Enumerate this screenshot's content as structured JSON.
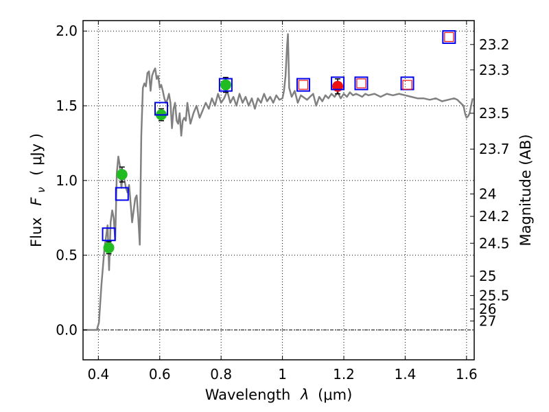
{
  "chart_data": {
    "type": "scatter",
    "title": "",
    "xlabel": "Wavelength",
    "xlabel_symbol": "λ",
    "xlabel_units": "(μm)",
    "ylabel_prefix": "Flux",
    "ylabel_symbol": "F",
    "ylabel_subscript": "ν",
    "ylabel_units": "( μJy )",
    "y2label": "Magnitude (AB)",
    "xlim": [
      0.35,
      1.625
    ],
    "ylim": [
      -0.2,
      2.07
    ],
    "grid": true,
    "xticks": [
      {
        "value": 0.4,
        "label": "0.4"
      },
      {
        "value": 0.6,
        "label": "0.6"
      },
      {
        "value": 0.8,
        "label": "0.8"
      },
      {
        "value": 1.0,
        "label": "1"
      },
      {
        "value": 1.2,
        "label": "1.2"
      },
      {
        "value": 1.4,
        "label": "1.4"
      },
      {
        "value": 1.6,
        "label": "1.6"
      }
    ],
    "yticks": [
      {
        "value": 0.0,
        "label": "0.0"
      },
      {
        "value": 0.5,
        "label": "0.5"
      },
      {
        "value": 1.0,
        "label": "1.0"
      },
      {
        "value": 1.5,
        "label": "1.5"
      },
      {
        "value": 2.0,
        "label": "2.0"
      }
    ],
    "y2ticks": [
      {
        "label": "23.2",
        "flux": 1.91
      },
      {
        "label": "23.3",
        "flux": 1.74
      },
      {
        "label": "23.5",
        "flux": 1.45
      },
      {
        "label": "23.7",
        "flux": 1.21
      },
      {
        "label": "24",
        "flux": 0.91
      },
      {
        "label": "24.2",
        "flux": 0.76
      },
      {
        "label": "24.5",
        "flux": 0.58
      },
      {
        "label": "25",
        "flux": 0.36
      },
      {
        "label": "25.5",
        "flux": 0.23
      },
      {
        "label": "26",
        "flux": 0.14
      },
      {
        "label": "27",
        "flux": 0.06
      }
    ],
    "series": [
      {
        "name": "model spectrum",
        "kind": "line",
        "color": "#808080",
        "x": [
          0.35,
          0.395,
          0.402,
          0.41,
          0.42,
          0.43,
          0.435,
          0.44,
          0.445,
          0.45,
          0.455,
          0.46,
          0.465,
          0.47,
          0.475,
          0.48,
          0.485,
          0.49,
          0.495,
          0.5,
          0.505,
          0.51,
          0.515,
          0.52,
          0.525,
          0.53,
          0.535,
          0.54,
          0.545,
          0.55,
          0.555,
          0.56,
          0.565,
          0.57,
          0.575,
          0.58,
          0.585,
          0.59,
          0.595,
          0.6,
          0.605,
          0.61,
          0.615,
          0.62,
          0.625,
          0.63,
          0.635,
          0.64,
          0.645,
          0.65,
          0.655,
          0.66,
          0.665,
          0.67,
          0.675,
          0.68,
          0.685,
          0.69,
          0.7,
          0.71,
          0.72,
          0.73,
          0.74,
          0.75,
          0.76,
          0.77,
          0.78,
          0.79,
          0.8,
          0.81,
          0.82,
          0.83,
          0.84,
          0.85,
          0.86,
          0.87,
          0.88,
          0.89,
          0.9,
          0.91,
          0.92,
          0.93,
          0.94,
          0.95,
          0.96,
          0.97,
          0.98,
          0.99,
          1.0,
          1.005,
          1.01,
          1.015,
          1.018,
          1.022,
          1.03,
          1.04,
          1.05,
          1.06,
          1.08,
          1.1,
          1.11,
          1.12,
          1.13,
          1.14,
          1.15,
          1.16,
          1.17,
          1.18,
          1.19,
          1.2,
          1.21,
          1.22,
          1.23,
          1.24,
          1.25,
          1.26,
          1.27,
          1.28,
          1.3,
          1.32,
          1.34,
          1.36,
          1.38,
          1.4,
          1.42,
          1.44,
          1.46,
          1.48,
          1.5,
          1.52,
          1.54,
          1.56,
          1.57,
          1.58,
          1.59,
          1.595,
          1.6,
          1.605,
          1.61,
          1.615,
          1.62
        ],
        "y": [
          0.0,
          0.0,
          0.05,
          0.3,
          0.55,
          0.7,
          0.4,
          0.72,
          0.8,
          0.75,
          0.6,
          1.05,
          1.16,
          1.1,
          0.95,
          1.05,
          1.0,
          0.95,
          0.92,
          0.97,
          0.85,
          0.72,
          0.8,
          0.88,
          0.9,
          0.75,
          0.57,
          1.3,
          1.62,
          1.65,
          1.63,
          1.72,
          1.73,
          1.6,
          1.7,
          1.73,
          1.75,
          1.68,
          1.7,
          1.62,
          1.64,
          1.6,
          1.55,
          1.52,
          1.54,
          1.58,
          1.52,
          1.35,
          1.48,
          1.52,
          1.4,
          1.38,
          1.45,
          1.3,
          1.4,
          1.42,
          1.4,
          1.52,
          1.38,
          1.45,
          1.5,
          1.42,
          1.47,
          1.52,
          1.48,
          1.55,
          1.5,
          1.58,
          1.52,
          1.55,
          1.6,
          1.52,
          1.56,
          1.5,
          1.58,
          1.52,
          1.56,
          1.5,
          1.55,
          1.48,
          1.55,
          1.52,
          1.58,
          1.53,
          1.56,
          1.52,
          1.57,
          1.54,
          1.55,
          1.6,
          1.7,
          1.9,
          1.98,
          1.62,
          1.56,
          1.6,
          1.52,
          1.57,
          1.54,
          1.58,
          1.5,
          1.56,
          1.53,
          1.57,
          1.55,
          1.58,
          1.56,
          1.59,
          1.55,
          1.58,
          1.56,
          1.59,
          1.57,
          1.58,
          1.57,
          1.56,
          1.58,
          1.57,
          1.58,
          1.56,
          1.58,
          1.57,
          1.58,
          1.57,
          1.56,
          1.55,
          1.55,
          1.54,
          1.55,
          1.53,
          1.54,
          1.55,
          1.54,
          1.52,
          1.5,
          1.45,
          1.42,
          1.43,
          1.45,
          1.5,
          1.55
        ]
      },
      {
        "name": "green observed points",
        "kind": "points",
        "marker": "circle",
        "color": "#22bb22",
        "x": [
          0.434,
          0.477,
          0.605,
          0.815
        ],
        "y": [
          0.55,
          1.04,
          1.44,
          1.64
        ],
        "yerr": [
          0.04,
          0.05,
          0.04,
          0.05
        ]
      },
      {
        "name": "red observed point",
        "kind": "points",
        "marker": "circle",
        "color": "#ee1111",
        "x": [
          1.18
        ],
        "y": [
          1.63
        ],
        "yerr": [
          0.05
        ]
      },
      {
        "name": "blue model boxes",
        "kind": "points",
        "marker": "square",
        "color": "#0000ee",
        "x": [
          0.434,
          0.477,
          0.605,
          0.815,
          1.068,
          1.18,
          1.257,
          1.407,
          1.543
        ],
        "y": [
          0.64,
          0.91,
          1.48,
          1.64,
          1.64,
          1.65,
          1.65,
          1.65,
          1.96
        ]
      },
      {
        "name": "red inner boxes",
        "kind": "points",
        "marker": "square",
        "color": "#ee1111",
        "x": [
          1.068,
          1.257,
          1.407,
          1.543
        ],
        "y": [
          1.64,
          1.65,
          1.64,
          1.96
        ]
      }
    ]
  }
}
